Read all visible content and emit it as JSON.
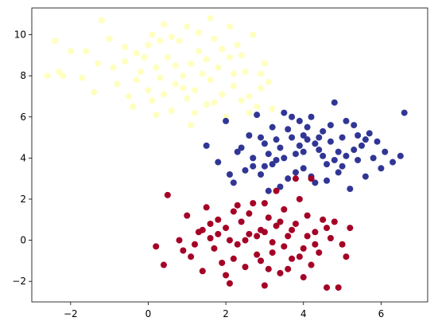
{
  "chart_data": {
    "type": "scatter",
    "title": "",
    "xlabel": "",
    "ylabel": "",
    "xlim": [
      -3.0,
      7.2
    ],
    "ylim": [
      -3.0,
      11.3
    ],
    "xticks": [
      -2,
      0,
      2,
      4,
      6
    ],
    "yticks": [
      -2,
      0,
      2,
      4,
      6,
      8,
      10
    ],
    "xtick_labels": [
      "−2",
      "0",
      "2",
      "4",
      "6"
    ],
    "ytick_labels": [
      "−2",
      "0",
      "2",
      "4",
      "6",
      "8",
      "10"
    ],
    "grid": false,
    "legend": false,
    "series": [
      {
        "color": "#ffffbf",
        "points": [
          [
            -2.6,
            8.0
          ],
          [
            -2.4,
            9.7
          ],
          [
            -2.2,
            8.0
          ],
          [
            -2.3,
            8.2
          ],
          [
            -1.7,
            7.9
          ],
          [
            -1.4,
            7.2
          ],
          [
            -1.2,
            10.7
          ],
          [
            -1.0,
            9.8
          ],
          [
            -0.8,
            7.6
          ],
          [
            -0.6,
            8.7
          ],
          [
            -0.5,
            7.0
          ],
          [
            -0.4,
            6.5
          ],
          [
            -0.3,
            9.1
          ],
          [
            -0.2,
            8.2
          ],
          [
            0.0,
            7.3
          ],
          [
            0.0,
            9.5
          ],
          [
            0.1,
            6.8
          ],
          [
            0.2,
            8.4
          ],
          [
            0.3,
            7.9
          ],
          [
            0.4,
            10.5
          ],
          [
            0.5,
            8.9
          ],
          [
            0.6,
            6.3
          ],
          [
            0.7,
            7.6
          ],
          [
            0.8,
            9.7
          ],
          [
            0.9,
            8.0
          ],
          [
            1.0,
            6.9
          ],
          [
            1.1,
            8.6
          ],
          [
            1.2,
            7.3
          ],
          [
            1.3,
            9.2
          ],
          [
            1.4,
            8.1
          ],
          [
            1.5,
            6.6
          ],
          [
            1.6,
            7.8
          ],
          [
            1.7,
            9.8
          ],
          [
            1.8,
            8.4
          ],
          [
            1.9,
            7.1
          ],
          [
            2.0,
            6.0
          ],
          [
            2.1,
            8.9
          ],
          [
            2.2,
            7.5
          ],
          [
            2.3,
            9.5
          ],
          [
            2.4,
            6.8
          ],
          [
            2.5,
            8.2
          ],
          [
            2.6,
            7.0
          ],
          [
            2.7,
            10.0
          ],
          [
            2.8,
            6.5
          ],
          [
            2.9,
            7.4
          ],
          [
            3.0,
            8.6
          ],
          [
            3.2,
            6.4
          ],
          [
            1.1,
            5.6
          ],
          [
            0.6,
            9.9
          ],
          [
            -0.1,
            8.9
          ],
          [
            1.3,
            10.1
          ],
          [
            2.1,
            10.4
          ],
          [
            -1.6,
            9.2
          ],
          [
            -0.9,
            8.4
          ],
          [
            0.3,
            9.7
          ],
          [
            1.7,
            6.7
          ],
          [
            2.2,
            8.1
          ],
          [
            0.9,
            7.4
          ],
          [
            -0.3,
            7.8
          ],
          [
            1.5,
            8.8
          ],
          [
            0.2,
            6.1
          ],
          [
            2.4,
            9.0
          ],
          [
            1.0,
            10.4
          ],
          [
            -1.3,
            8.6
          ],
          [
            0.7,
            8.5
          ],
          [
            1.9,
            9.3
          ],
          [
            2.6,
            6.2
          ],
          [
            0.4,
            7.1
          ],
          [
            1.2,
            6.2
          ],
          [
            -0.6,
            9.4
          ],
          [
            2.9,
            8.1
          ],
          [
            1.6,
            10.8
          ],
          [
            0.1,
            10.0
          ],
          [
            -2.0,
            9.2
          ],
          [
            3.1,
            7.7
          ]
        ]
      },
      {
        "color": "#313695",
        "points": [
          [
            1.5,
            4.6
          ],
          [
            1.8,
            3.8
          ],
          [
            2.0,
            5.8
          ],
          [
            2.2,
            2.8
          ],
          [
            2.3,
            4.3
          ],
          [
            2.5,
            3.4
          ],
          [
            2.6,
            5.1
          ],
          [
            2.7,
            4.0
          ],
          [
            2.8,
            6.1
          ],
          [
            2.9,
            3.2
          ],
          [
            3.0,
            4.7
          ],
          [
            3.1,
            2.4
          ],
          [
            3.2,
            5.5
          ],
          [
            3.3,
            3.9
          ],
          [
            3.4,
            4.5
          ],
          [
            3.5,
            6.2
          ],
          [
            3.6,
            3.0
          ],
          [
            3.7,
            5.0
          ],
          [
            3.8,
            4.2
          ],
          [
            3.9,
            5.8
          ],
          [
            4.0,
            3.5
          ],
          [
            4.1,
            4.9
          ],
          [
            4.2,
            6.0
          ],
          [
            4.3,
            2.8
          ],
          [
            4.4,
            4.4
          ],
          [
            4.5,
            5.3
          ],
          [
            4.6,
            3.7
          ],
          [
            4.7,
            4.8
          ],
          [
            4.8,
            6.7
          ],
          [
            4.9,
            3.3
          ],
          [
            5.0,
            5.0
          ],
          [
            5.1,
            4.1
          ],
          [
            5.2,
            2.5
          ],
          [
            5.3,
            5.6
          ],
          [
            5.4,
            3.9
          ],
          [
            5.5,
            4.6
          ],
          [
            5.6,
            3.1
          ],
          [
            5.7,
            5.2
          ],
          [
            5.8,
            4.0
          ],
          [
            5.9,
            4.8
          ],
          [
            6.1,
            4.3
          ],
          [
            6.3,
            3.8
          ],
          [
            6.5,
            4.1
          ],
          [
            6.6,
            6.2
          ],
          [
            6.0,
            3.5
          ],
          [
            3.3,
            4.9
          ],
          [
            3.6,
            5.4
          ],
          [
            4.0,
            4.3
          ],
          [
            4.2,
            3.1
          ],
          [
            4.5,
            4.1
          ],
          [
            3.0,
            3.6
          ],
          [
            2.4,
            4.5
          ],
          [
            3.8,
            3.3
          ],
          [
            4.7,
            5.6
          ],
          [
            5.0,
            3.6
          ],
          [
            3.5,
            4.0
          ],
          [
            4.1,
            5.5
          ],
          [
            4.4,
            5.0
          ],
          [
            2.9,
            5.0
          ],
          [
            3.2,
            3.7
          ],
          [
            5.3,
            4.4
          ],
          [
            4.9,
            4.3
          ],
          [
            3.7,
            6.0
          ],
          [
            4.3,
            4.7
          ],
          [
            2.1,
            3.2
          ],
          [
            3.4,
            2.6
          ],
          [
            4.6,
            2.9
          ],
          [
            5.6,
            4.9
          ],
          [
            5.1,
            5.8
          ],
          [
            3.9,
            4.6
          ],
          [
            2.7,
            3.6
          ],
          [
            4.0,
            5.1
          ],
          [
            3.1,
            4.2
          ],
          [
            4.8,
            3.9
          ],
          [
            5.4,
            5.1
          ]
        ]
      },
      {
        "color": "#a50026",
        "points": [
          [
            0.2,
            -0.3
          ],
          [
            0.4,
            -1.2
          ],
          [
            0.5,
            2.2
          ],
          [
            0.8,
            0.0
          ],
          [
            0.9,
            -0.5
          ],
          [
            1.0,
            1.2
          ],
          [
            1.1,
            -0.8
          ],
          [
            1.3,
            0.4
          ],
          [
            1.4,
            -1.5
          ],
          [
            1.5,
            1.6
          ],
          [
            1.6,
            0.1
          ],
          [
            1.7,
            -0.4
          ],
          [
            1.8,
            1.0
          ],
          [
            1.9,
            -1.1
          ],
          [
            2.0,
            0.6
          ],
          [
            2.1,
            -2.1
          ],
          [
            2.2,
            1.4
          ],
          [
            2.3,
            -0.2
          ],
          [
            2.4,
            0.9
          ],
          [
            2.5,
            -1.3
          ],
          [
            2.6,
            0.3
          ],
          [
            2.7,
            1.8
          ],
          [
            2.8,
            -0.7
          ],
          [
            2.9,
            0.5
          ],
          [
            3.0,
            -2.2
          ],
          [
            3.1,
            1.1
          ],
          [
            3.2,
            -0.1
          ],
          [
            3.3,
            0.7
          ],
          [
            3.4,
            -1.6
          ],
          [
            3.5,
            1.5
          ],
          [
            3.6,
            0.2
          ],
          [
            3.7,
            -0.9
          ],
          [
            3.8,
            0.8
          ],
          [
            3.9,
            2.0
          ],
          [
            4.0,
            -0.4
          ],
          [
            4.1,
            1.2
          ],
          [
            4.2,
            -1.2
          ],
          [
            4.3,
            0.4
          ],
          [
            4.4,
            -0.6
          ],
          [
            4.5,
            1.0
          ],
          [
            4.6,
            -2.3
          ],
          [
            4.7,
            0.1
          ],
          [
            4.8,
            0.9
          ],
          [
            4.9,
            -2.3
          ],
          [
            5.0,
            -0.2
          ],
          [
            5.2,
            0.6
          ],
          [
            5.1,
            -0.8
          ],
          [
            3.8,
            3.0
          ],
          [
            4.2,
            3.0
          ],
          [
            3.3,
            2.4
          ],
          [
            2.3,
            1.7
          ],
          [
            1.2,
            -0.2
          ],
          [
            2.0,
            -1.7
          ],
          [
            3.0,
            1.8
          ],
          [
            3.6,
            -1.4
          ],
          [
            4.0,
            -1.8
          ],
          [
            2.5,
            0.0
          ],
          [
            3.2,
            -0.6
          ],
          [
            2.8,
            0.2
          ],
          [
            1.6,
            0.8
          ],
          [
            3.5,
            -0.3
          ],
          [
            4.3,
            -0.2
          ],
          [
            2.9,
            -1.0
          ],
          [
            3.7,
            0.5
          ],
          [
            2.2,
            -0.9
          ],
          [
            1.8,
            0.3
          ],
          [
            3.4,
            0.9
          ],
          [
            4.6,
            0.6
          ],
          [
            2.6,
            1.3
          ],
          [
            3.1,
            -1.4
          ],
          [
            1.4,
            0.5
          ],
          [
            3.9,
            -0.8
          ],
          [
            2.1,
            0.0
          ],
          [
            4.1,
            0.2
          ],
          [
            3.0,
            0.4
          ]
        ]
      }
    ]
  }
}
